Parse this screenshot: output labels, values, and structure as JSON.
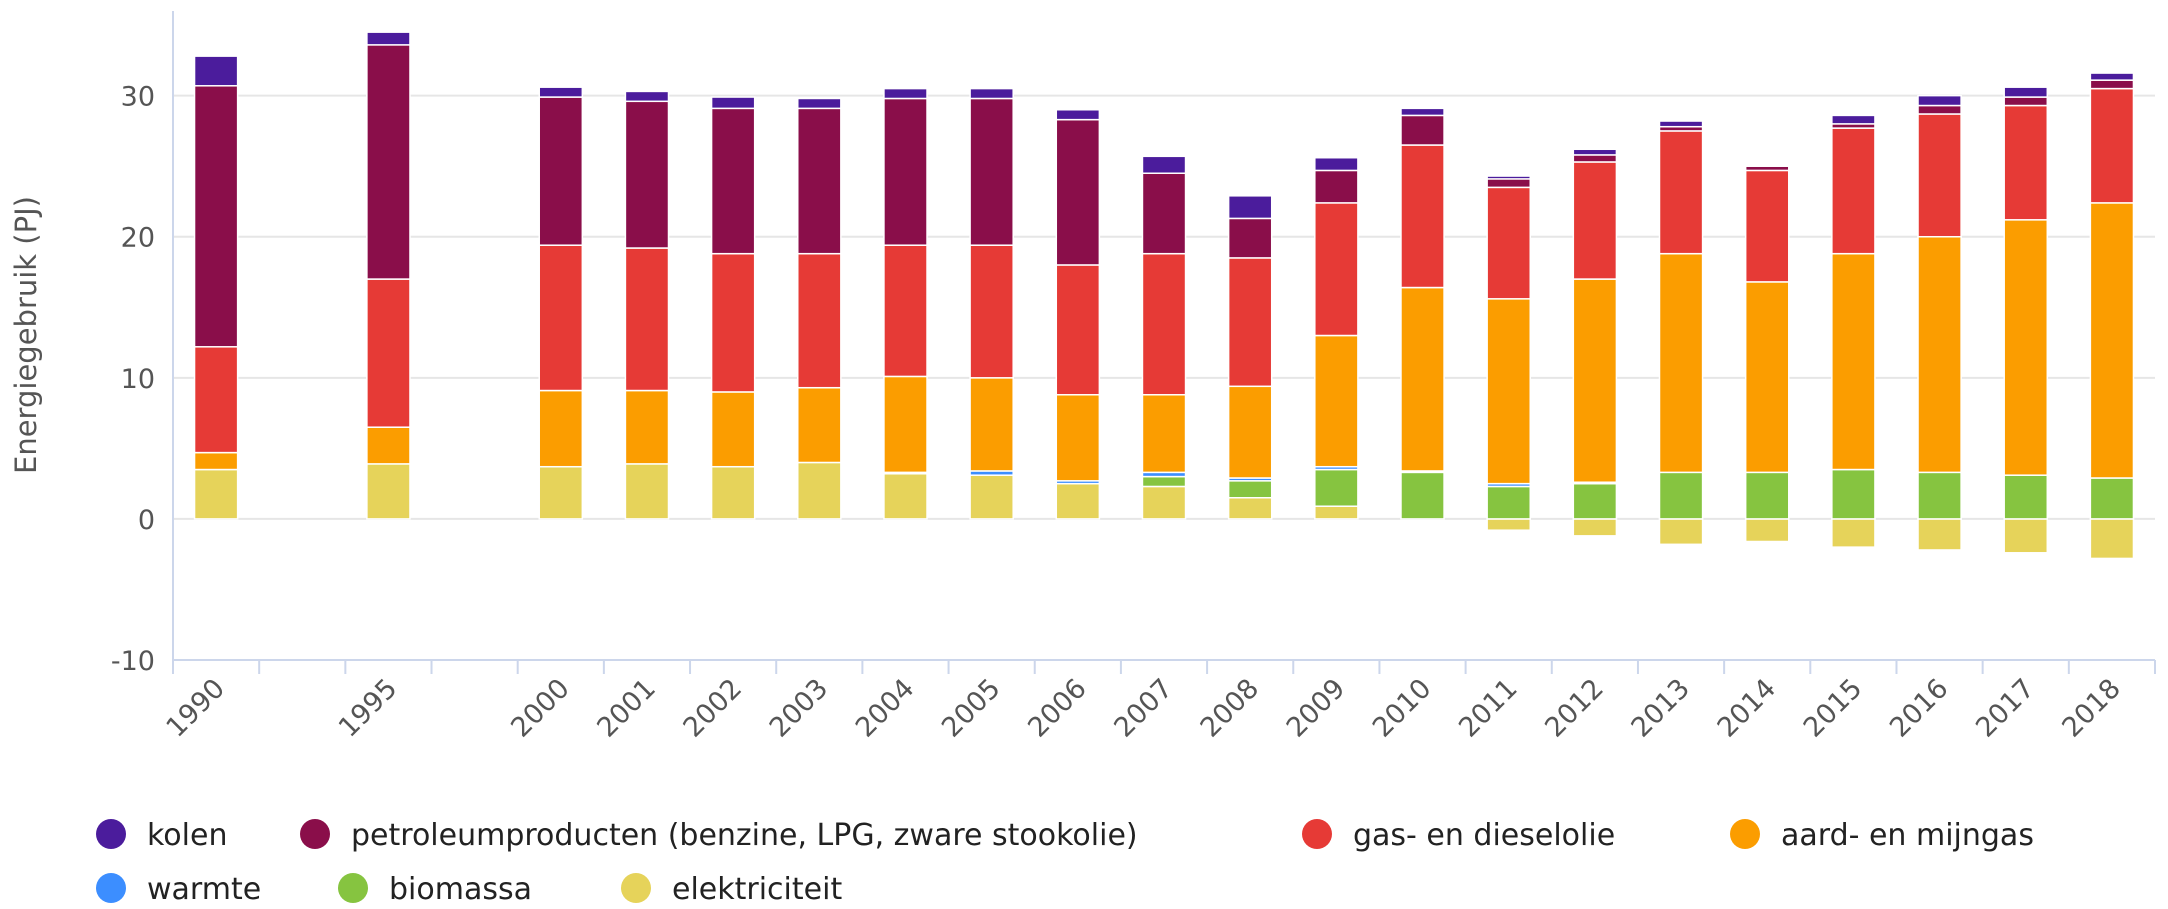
{
  "chart_data": {
    "type": "stacked_bar",
    "y_axis_label": "Energiegebruik (PJ)",
    "categories": [
      "1990",
      null,
      "1995",
      null,
      "2000",
      "2001",
      "2002",
      "2003",
      "2004",
      "2005",
      "2006",
      "2007",
      "2008",
      "2009",
      "2010",
      "2011",
      "2012",
      "2013",
      "2014",
      "2015",
      "2016",
      "2017",
      "2018"
    ],
    "ylim": [
      -10,
      36
    ],
    "yticks": [
      -10,
      0,
      10,
      20,
      30
    ],
    "grid": true,
    "legend": "bottom",
    "series": [
      {
        "name": "elektriciteit",
        "color": "#e6d35a",
        "values": [
          3.5,
          null,
          3.9,
          null,
          3.7,
          3.9,
          3.7,
          4.0,
          3.2,
          3.1,
          2.5,
          2.3,
          1.5,
          0.9,
          0,
          -0.8,
          -1.2,
          -1.8,
          -1.6,
          -2.0,
          -2.2,
          -2.4,
          -2.8
        ]
      },
      {
        "name": "biomassa",
        "color": "#86c440",
        "values": [
          0,
          null,
          0,
          null,
          0,
          0,
          0,
          0,
          0,
          0,
          0,
          0.7,
          1.2,
          2.6,
          3.3,
          2.3,
          2.5,
          3.3,
          3.3,
          3.5,
          3.3,
          3.1,
          2.9
        ]
      },
      {
        "name": "warmte",
        "color": "#3c8eff",
        "values": [
          0,
          null,
          0,
          null,
          0,
          0,
          0,
          0,
          0.1,
          0.3,
          0.2,
          0.3,
          0.2,
          0.2,
          0.1,
          0.2,
          0.1,
          0,
          0,
          0,
          0,
          0,
          0
        ]
      },
      {
        "name": "aard- en mijngas",
        "color": "#fb9d00",
        "values": [
          1.2,
          null,
          2.6,
          null,
          5.4,
          5.2,
          5.3,
          5.3,
          6.8,
          6.6,
          6.1,
          5.5,
          6.5,
          9.3,
          13.0,
          13.1,
          14.4,
          15.5,
          13.5,
          15.3,
          16.7,
          18.1,
          19.5
        ]
      },
      {
        "name": "gas- en dieselolie",
        "color": "#e63a36",
        "values": [
          7.5,
          null,
          10.5,
          null,
          10.3,
          10.1,
          9.8,
          9.5,
          9.3,
          9.4,
          9.2,
          10.0,
          9.1,
          9.4,
          10.1,
          7.9,
          8.3,
          8.7,
          7.9,
          8.9,
          8.7,
          8.1,
          8.1
        ]
      },
      {
        "name": "petroleumproducten (benzine, LPG, zware stookolie)",
        "color": "#8a0e4a",
        "values": [
          18.5,
          null,
          16.6,
          null,
          10.5,
          10.4,
          10.3,
          10.3,
          10.4,
          10.4,
          10.3,
          5.7,
          2.8,
          2.3,
          2.1,
          0.6,
          0.5,
          0.3,
          0.3,
          0.3,
          0.6,
          0.6,
          0.6
        ]
      },
      {
        "name": "kolen",
        "color": "#4b1c9c",
        "values": [
          2.1,
          null,
          0.9,
          null,
          0.7,
          0.7,
          0.8,
          0.7,
          0.7,
          0.7,
          0.7,
          1.2,
          1.6,
          0.9,
          0.5,
          0.2,
          0.4,
          0.4,
          0.1,
          0.6,
          0.7,
          0.7,
          0.5
        ]
      }
    ]
  }
}
